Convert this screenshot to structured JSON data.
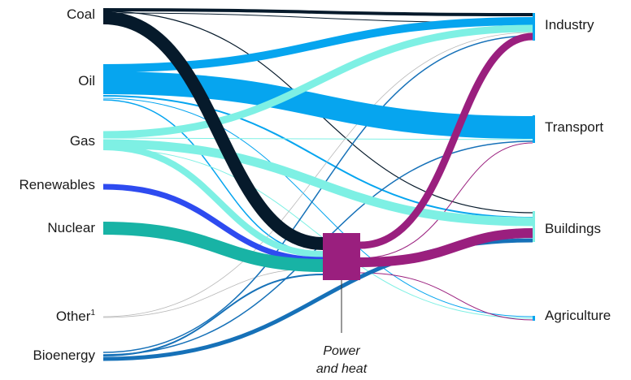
{
  "sources": {
    "coal": "Coal",
    "oil": "Oil",
    "gas": "Gas",
    "renewables": "Renewables",
    "nuclear": "Nuclear",
    "other": "Other",
    "other_sup": "1",
    "bioenergy": "Bioenergy"
  },
  "hub": {
    "line1": "Power",
    "line2": "and heat"
  },
  "targets": {
    "industry": "Industry",
    "transport": "Transport",
    "buildings": "Buildings",
    "agriculture": "Agriculture"
  },
  "colors": {
    "coal": "#061a2b",
    "oil": "#06a5ef",
    "gas": "#7ef0e4",
    "renewables": "#2e4bf0",
    "nuclear": "#18b3a5",
    "bioenergy": "#1671b8",
    "power": "#9a1f7e",
    "other": "#b8b8b8"
  }
}
